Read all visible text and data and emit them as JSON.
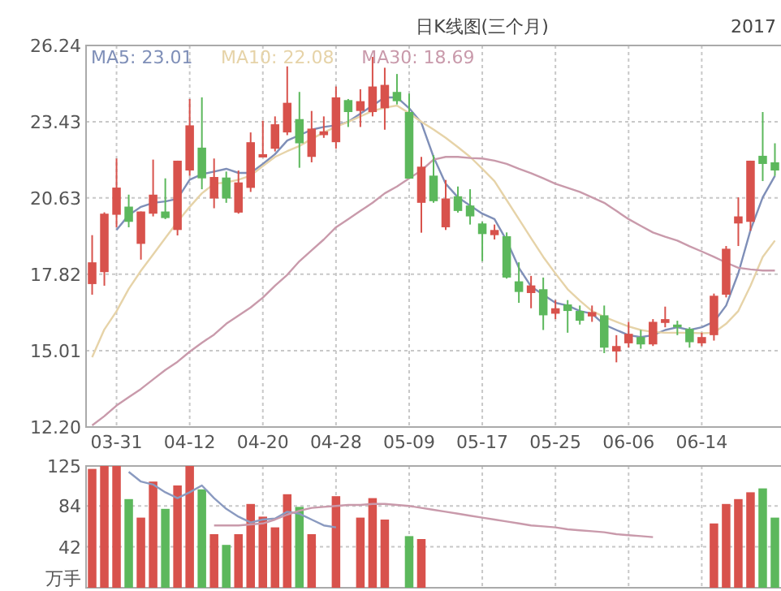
{
  "chart_data": [
    {
      "type": "candlestick",
      "title": "日K线图(三个月)",
      "annotations": [
        "2017"
      ],
      "categories": [
        null,
        null,
        "03-31",
        null,
        null,
        null,
        null,
        null,
        "04-12",
        null,
        null,
        null,
        null,
        null,
        "04-20",
        null,
        null,
        null,
        null,
        null,
        "04-28",
        null,
        null,
        null,
        null,
        null,
        "05-09",
        null,
        null,
        null,
        null,
        null,
        "05-17",
        null,
        null,
        null,
        null,
        null,
        "05-25",
        null,
        null,
        null,
        null,
        null,
        "06-06",
        null,
        null,
        null,
        null,
        null,
        "06-14",
        null,
        null,
        null,
        null,
        null,
        null
      ],
      "ohlc": [
        [
          17.46,
          19.26,
          17.07,
          18.26
        ],
        [
          17.9,
          20.1,
          17.4,
          20.05
        ],
        [
          20.01,
          22.08,
          19.55,
          21.01
        ],
        [
          20.31,
          20.75,
          19.55,
          19.75
        ],
        [
          18.94,
          20.13,
          18.36,
          20.13
        ],
        [
          20.05,
          22.04,
          19.95,
          20.75
        ],
        [
          20.13,
          21.35,
          19.85,
          19.89
        ],
        [
          19.45,
          22.0,
          19.25,
          22.0
        ],
        [
          21.64,
          24.27,
          21.45,
          23.3
        ],
        [
          22.48,
          24.33,
          20.95,
          21.35
        ],
        [
          20.61,
          22.08,
          20.25,
          21.4
        ],
        [
          21.38,
          21.6,
          20.45,
          20.61
        ],
        [
          20.09,
          21.64,
          20.05,
          21.2
        ],
        [
          21.0,
          23.04,
          20.85,
          22.68
        ],
        [
          22.12,
          23.47,
          22.12,
          22.24
        ],
        [
          22.44,
          23.63,
          22.34,
          23.34
        ],
        [
          23.04,
          25.47,
          22.94,
          24.13
        ],
        [
          23.53,
          24.53,
          21.74,
          22.64
        ],
        [
          22.14,
          23.83,
          21.94,
          23.18
        ],
        [
          22.94,
          23.63,
          22.84,
          23.08
        ],
        [
          22.68,
          24.73,
          22.44,
          24.33
        ],
        [
          24.23,
          24.27,
          23.24,
          23.79
        ],
        [
          23.83,
          24.63,
          23.24,
          24.19
        ],
        [
          23.79,
          25.82,
          23.63,
          24.73
        ],
        [
          23.93,
          25.42,
          23.14,
          24.79
        ],
        [
          24.53,
          25.19,
          24.07,
          24.19
        ],
        [
          23.79,
          24.47,
          21.34,
          21.34
        ],
        [
          20.45,
          22.14,
          19.35,
          21.78
        ],
        [
          21.45,
          22.2,
          20.45,
          20.51
        ],
        [
          19.55,
          21.29,
          19.45,
          20.61
        ],
        [
          20.69,
          21.05,
          20.09,
          20.15
        ],
        [
          20.35,
          20.95,
          19.65,
          19.95
        ],
        [
          19.69,
          19.75,
          18.3,
          19.3
        ],
        [
          19.26,
          19.65,
          19.1,
          19.45
        ],
        [
          19.22,
          19.36,
          17.66,
          17.7
        ],
        [
          17.56,
          18.26,
          16.77,
          17.17
        ],
        [
          17.13,
          17.76,
          16.57,
          17.41
        ],
        [
          17.27,
          17.7,
          15.77,
          16.31
        ],
        [
          16.37,
          16.87,
          16.17,
          16.57
        ],
        [
          16.71,
          16.87,
          15.67,
          16.47
        ],
        [
          16.47,
          16.67,
          15.97,
          16.11
        ],
        [
          16.27,
          16.67,
          16.07,
          16.43
        ],
        [
          16.31,
          16.67,
          14.92,
          15.12
        ],
        [
          14.98,
          15.58,
          14.58,
          15.18
        ],
        [
          15.28,
          16.07,
          15.12,
          15.63
        ],
        [
          15.51,
          15.77,
          15.08,
          15.24
        ],
        [
          15.24,
          16.17,
          15.18,
          16.07
        ],
        [
          16.03,
          16.63,
          15.87,
          16.17
        ],
        [
          15.97,
          16.11,
          15.58,
          15.87
        ],
        [
          15.81,
          15.87,
          15.12,
          15.32
        ],
        [
          15.28,
          15.67,
          15.18,
          15.51
        ],
        [
          15.58,
          17.11,
          15.38,
          17.03
        ],
        [
          17.07,
          18.86,
          16.97,
          18.76
        ],
        [
          19.69,
          20.65,
          18.86,
          19.95
        ],
        [
          19.75,
          22.0,
          19.42,
          22.0
        ],
        [
          22.18,
          23.79,
          21.25,
          21.88
        ],
        [
          21.94,
          22.64,
          21.44,
          21.64
        ]
      ],
      "colors": [
        "#d8524c",
        "#d8524c",
        "#d8524c",
        "#5cb85c",
        "#d8524c",
        "#d8524c",
        "#5cb85c",
        "#d8524c",
        "#d8524c",
        "#5cb85c",
        "#d8524c",
        "#5cb85c",
        "#d8524c",
        "#d8524c",
        "#d8524c",
        "#d8524c",
        "#d8524c",
        "#5cb85c",
        "#d8524c",
        "#d8524c",
        "#d8524c",
        "#5cb85c",
        "#d8524c",
        "#d8524c",
        "#d8524c",
        "#5cb85c",
        "#5cb85c",
        "#d8524c",
        "#5cb85c",
        "#d8524c",
        "#5cb85c",
        "#5cb85c",
        "#5cb85c",
        "#d8524c",
        "#5cb85c",
        "#5cb85c",
        "#d8524c",
        "#5cb85c",
        "#d8524c",
        "#5cb85c",
        "#5cb85c",
        "#d8524c",
        "#5cb85c",
        "#d8524c",
        "#d8524c",
        "#5cb85c",
        "#d8524c",
        "#d8524c",
        "#5cb85c",
        "#5cb85c",
        "#d8524c",
        "#d8524c",
        "#d8524c",
        "#d8524c",
        "#d8524c",
        "#5cb85c",
        "#5cb85c"
      ],
      "series": [
        {
          "type": "line",
          "name": "MA5: 23.01",
          "color": "#7f8fb8",
          "values": [
            null,
            null,
            19.45,
            20.0,
            20.3,
            20.45,
            20.5,
            20.6,
            21.3,
            21.5,
            21.6,
            21.7,
            21.55,
            21.55,
            21.88,
            22.24,
            22.74,
            22.94,
            23.14,
            23.24,
            23.3,
            23.43,
            23.73,
            24.03,
            24.33,
            24.33,
            23.93,
            23.4,
            22.14,
            21.15,
            20.65,
            20.35,
            20.05,
            19.85,
            19.06,
            18.06,
            17.37,
            17.07,
            16.77,
            16.67,
            16.47,
            16.37,
            15.97,
            15.77,
            15.58,
            15.51,
            15.58,
            15.77,
            15.87,
            15.77,
            15.87,
            16.07,
            16.67,
            17.86,
            19.45,
            20.65,
            21.44
          ]
        },
        {
          "type": "line",
          "name": "MA10: 22.08",
          "color": "#e6d3a8",
          "values": [
            14.77,
            15.79,
            16.46,
            17.28,
            17.95,
            18.55,
            19.15,
            19.75,
            20.3,
            20.8,
            21.15,
            21.2,
            21.3,
            21.45,
            21.8,
            22.14,
            22.35,
            22.54,
            22.8,
            23.04,
            23.25,
            23.43,
            23.63,
            23.83,
            23.95,
            24.03,
            23.75,
            23.43,
            23.15,
            22.84,
            22.5,
            22.14,
            21.7,
            21.25,
            20.55,
            19.85,
            19.15,
            18.46,
            17.85,
            17.27,
            16.85,
            16.47,
            16.25,
            16.07,
            15.9,
            15.77,
            15.7,
            15.67,
            15.67,
            15.67,
            15.65,
            15.67,
            16.0,
            16.47,
            17.4,
            18.46,
            19.06
          ]
        },
        {
          "type": "line",
          "name": "MA30: 18.69",
          "color": "#c99aab",
          "values": [
            12.26,
            12.6,
            12.99,
            13.3,
            13.6,
            13.95,
            14.3,
            14.6,
            14.97,
            15.3,
            15.6,
            16.0,
            16.3,
            16.6,
            16.96,
            17.4,
            17.8,
            18.3,
            18.7,
            19.1,
            19.55,
            19.85,
            20.15,
            20.45,
            20.8,
            21.05,
            21.35,
            21.64,
            22.04,
            22.14,
            22.14,
            22.1,
            22.08,
            22.0,
            21.88,
            21.7,
            21.54,
            21.35,
            21.15,
            21.0,
            20.85,
            20.65,
            20.45,
            20.15,
            19.85,
            19.6,
            19.36,
            19.2,
            19.06,
            18.85,
            18.66,
            18.46,
            18.25,
            18.06,
            18.0,
            17.96,
            17.96
          ]
        }
      ],
      "ylim": [
        12.2,
        26.24
      ],
      "yticks": [
        {
          "value": 12.2,
          "label": "12.20"
        },
        {
          "value": 15.01,
          "label": "15.01"
        },
        {
          "value": 17.82,
          "label": "17.82"
        },
        {
          "value": 20.63,
          "label": "20.63"
        },
        {
          "value": 23.43,
          "label": "23.43"
        },
        {
          "value": 26.24,
          "label": "26.24"
        }
      ],
      "grid": true,
      "legend": "top left"
    },
    {
      "type": "bar",
      "ylabel": "万手",
      "categories": [
        null,
        null,
        null,
        null,
        null,
        null,
        null,
        null,
        null,
        null,
        null,
        null,
        null,
        null,
        null,
        null,
        null,
        null,
        null,
        null,
        null,
        null,
        null,
        null,
        null,
        null,
        null,
        null,
        null,
        null,
        null,
        null,
        null,
        null,
        null,
        null,
        null,
        null,
        null,
        null,
        null,
        null,
        null,
        null,
        null,
        null,
        null,
        null,
        null,
        null,
        null,
        null,
        null,
        null,
        null,
        null,
        null
      ],
      "series": [
        {
          "type": "bar",
          "colors": [
            "#d8524c",
            "#d8524c",
            "#d8524c",
            "#5cb85c",
            "#d8524c",
            "#d8524c",
            "#5cb85c",
            "#d8524c",
            "#d8524c",
            "#5cb85c",
            "#d8524c",
            "#5cb85c",
            "#d8524c",
            "#d8524c",
            "#d8524c",
            "#d8524c",
            "#d8524c",
            "#5cb85c",
            "#d8524c",
            null,
            "#d8524c",
            null,
            "#d8524c",
            "#d8524c",
            "#d8524c",
            null,
            "#5cb85c",
            "#d8524c",
            null,
            null,
            null,
            null,
            null,
            null,
            null,
            null,
            null,
            null,
            null,
            null,
            null,
            null,
            null,
            null,
            null,
            null,
            null,
            null,
            null,
            null,
            null,
            "#d8524c",
            "#d8524c",
            "#d8524c",
            "#d8524c",
            "#5cb85c",
            "#5cb85c"
          ],
          "values": [
            122,
            125,
            125,
            91,
            72,
            109,
            81,
            105,
            125,
            101,
            55,
            44,
            55,
            86,
            73,
            62,
            96,
            83,
            55,
            null,
            94,
            null,
            72,
            92,
            70,
            null,
            53,
            50,
            null,
            null,
            null,
            null,
            null,
            null,
            null,
            null,
            null,
            null,
            null,
            null,
            null,
            null,
            null,
            null,
            null,
            null,
            null,
            null,
            null,
            null,
            null,
            66,
            86,
            91,
            98,
            102,
            72
          ]
        },
        {
          "type": "line",
          "color": "#8a9ac0",
          "values": [
            null,
            null,
            null,
            119,
            109,
            106,
            98,
            92,
            98,
            105,
            92,
            81,
            73,
            67,
            70,
            71,
            78,
            76,
            70,
            64,
            62,
            null,
            null,
            null,
            null,
            null,
            null,
            null,
            null,
            null,
            null,
            null,
            null,
            null,
            null,
            null,
            null,
            null,
            null,
            null,
            null,
            null,
            null,
            null,
            null,
            null,
            null,
            null,
            null,
            null,
            null,
            null,
            null,
            null,
            null,
            null,
            null
          ]
        },
        {
          "type": "line",
          "color": "#c99aab",
          "values": [
            null,
            null,
            null,
            null,
            null,
            null,
            null,
            null,
            null,
            null,
            64,
            64,
            64,
            65,
            66,
            70,
            75,
            79,
            82,
            83,
            84,
            85,
            85,
            86,
            86,
            85,
            84,
            82,
            80,
            78,
            76,
            74,
            72,
            70,
            68,
            66,
            64,
            63,
            62,
            60,
            59,
            58,
            57,
            55,
            54,
            53,
            52,
            null,
            null,
            null,
            null,
            null,
            null,
            null,
            null,
            null,
            null
          ]
        }
      ],
      "ylim": [
        0,
        125
      ],
      "yticks": [
        42,
        84,
        125
      ],
      "grid": true,
      "tick_labels": "y"
    }
  ]
}
